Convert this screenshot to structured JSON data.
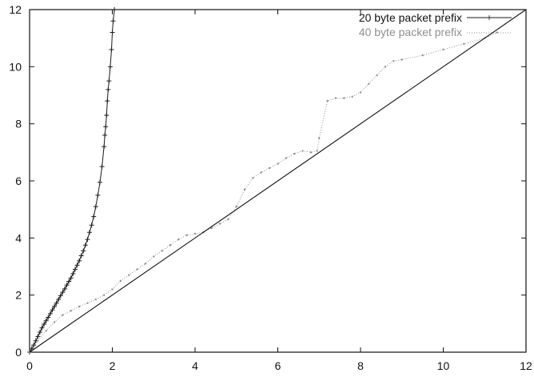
{
  "chart_data": {
    "type": "line",
    "title": "",
    "xlabel": "",
    "ylabel": "",
    "xlim": [
      0,
      12
    ],
    "ylim": [
      0,
      12
    ],
    "xticks": [
      0,
      2,
      4,
      6,
      8,
      10,
      12
    ],
    "yticks": [
      0,
      2,
      4,
      6,
      8,
      10,
      12
    ],
    "grid": false,
    "legend_position": "top-right",
    "series": [
      {
        "name": "20 byte packet prefix",
        "color": "#1a1a1a",
        "marker": "plus",
        "x": [
          0.0,
          0.05,
          0.1,
          0.15,
          0.2,
          0.25,
          0.3,
          0.35,
          0.4,
          0.45,
          0.5,
          0.55,
          0.6,
          0.65,
          0.7,
          0.75,
          0.8,
          0.85,
          0.9,
          0.95,
          1.0,
          1.05,
          1.1,
          1.15,
          1.2,
          1.25,
          1.3,
          1.35,
          1.4,
          1.45,
          1.5,
          1.55,
          1.6,
          1.65,
          1.7,
          1.75,
          1.8,
          1.82,
          1.84,
          1.86,
          1.88,
          1.9,
          1.92,
          1.95,
          1.98,
          2.0,
          2.02,
          2.05
        ],
        "y": [
          0.0,
          0.12,
          0.25,
          0.4,
          0.55,
          0.7,
          0.85,
          0.98,
          1.1,
          1.22,
          1.35,
          1.48,
          1.6,
          1.72,
          1.85,
          1.98,
          2.1,
          2.22,
          2.35,
          2.48,
          2.6,
          2.75,
          2.9,
          3.05,
          3.2,
          3.38,
          3.55,
          3.75,
          3.95,
          4.2,
          4.45,
          4.75,
          5.1,
          5.5,
          5.95,
          6.5,
          7.2,
          7.6,
          7.9,
          8.3,
          8.8,
          9.2,
          9.5,
          10.0,
          10.6,
          11.2,
          11.6,
          12.0
        ]
      },
      {
        "name": "40 byte packet prefix",
        "color": "#909090",
        "marker": "dot",
        "x": [
          0.0,
          0.2,
          0.4,
          0.6,
          0.8,
          1.0,
          1.2,
          1.4,
          1.6,
          1.8,
          2.0,
          2.2,
          2.4,
          2.6,
          2.8,
          3.0,
          3.2,
          3.4,
          3.6,
          3.8,
          4.0,
          4.2,
          4.4,
          4.6,
          4.8,
          5.0,
          5.2,
          5.4,
          5.6,
          5.8,
          6.0,
          6.2,
          6.4,
          6.6,
          6.8,
          6.95,
          7.0,
          7.2,
          7.4,
          7.6,
          7.8,
          8.0,
          8.2,
          8.4,
          8.6,
          8.8,
          9.0,
          9.5,
          10.0,
          10.5,
          11.0,
          11.3
        ],
        "y": [
          0.0,
          0.4,
          0.75,
          1.05,
          1.3,
          1.45,
          1.6,
          1.72,
          1.85,
          2.0,
          2.2,
          2.5,
          2.7,
          2.9,
          3.1,
          3.35,
          3.55,
          3.75,
          3.95,
          4.1,
          4.15,
          4.2,
          4.35,
          4.5,
          4.65,
          5.1,
          5.7,
          6.1,
          6.3,
          6.45,
          6.6,
          6.8,
          6.95,
          7.05,
          7.0,
          7.05,
          7.5,
          8.8,
          8.9,
          8.9,
          8.95,
          9.1,
          9.4,
          9.7,
          10.0,
          10.2,
          10.25,
          10.4,
          10.6,
          10.8,
          11.0,
          11.2
        ]
      },
      {
        "name": "",
        "color": "#111111",
        "marker": "none",
        "x": [
          0,
          12
        ],
        "y": [
          0,
          12
        ]
      }
    ]
  }
}
